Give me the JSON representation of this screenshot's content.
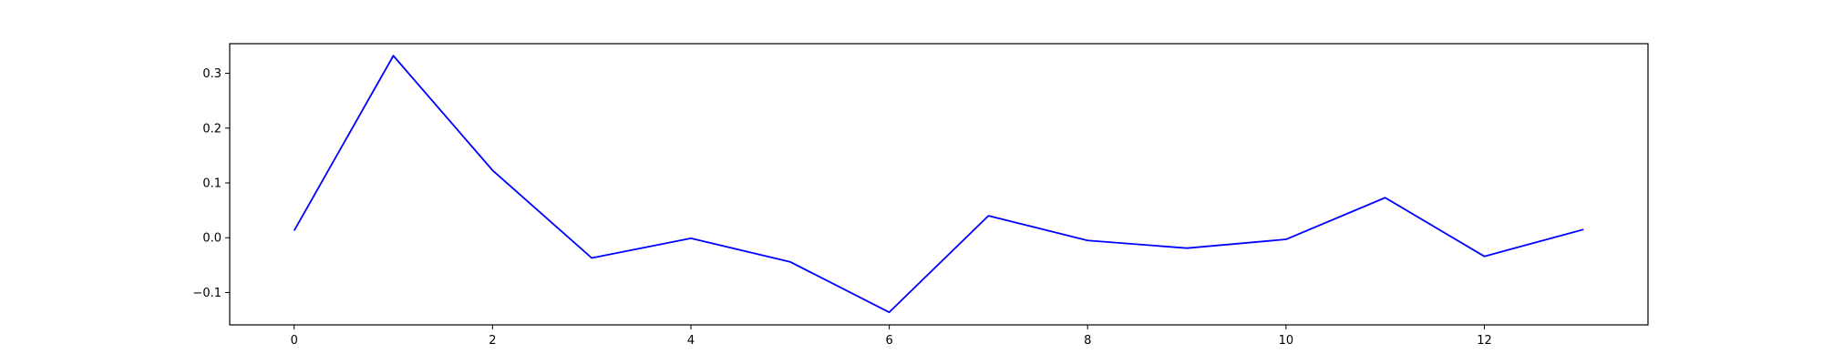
{
  "chart_data": {
    "type": "line",
    "title": "",
    "xlabel": "",
    "ylabel": "",
    "x": [
      0,
      1,
      2,
      3,
      4,
      5,
      6,
      7,
      8,
      9,
      10,
      11,
      12,
      13
    ],
    "series": [
      {
        "values": [
          0.013,
          0.332,
          0.123,
          -0.037,
          -0.001,
          -0.044,
          -0.136,
          0.04,
          -0.005,
          -0.019,
          -0.003,
          0.073,
          -0.034,
          0.015
        ],
        "color": "#0000ff"
      }
    ],
    "xlim": [
      -0.65,
      13.65
    ],
    "ylim": [
      -0.159,
      0.354
    ],
    "xticks": [
      0,
      2,
      4,
      6,
      8,
      10,
      12
    ],
    "yticks": [
      -0.1,
      0.0,
      0.1,
      0.2,
      0.3
    ],
    "xtick_labels": [
      "0",
      "2",
      "4",
      "6",
      "8",
      "10",
      "12"
    ],
    "ytick_labels": [
      "−0.1",
      "0.0",
      "0.1",
      "0.2",
      "0.3"
    ],
    "grid": false,
    "legend": "none"
  }
}
